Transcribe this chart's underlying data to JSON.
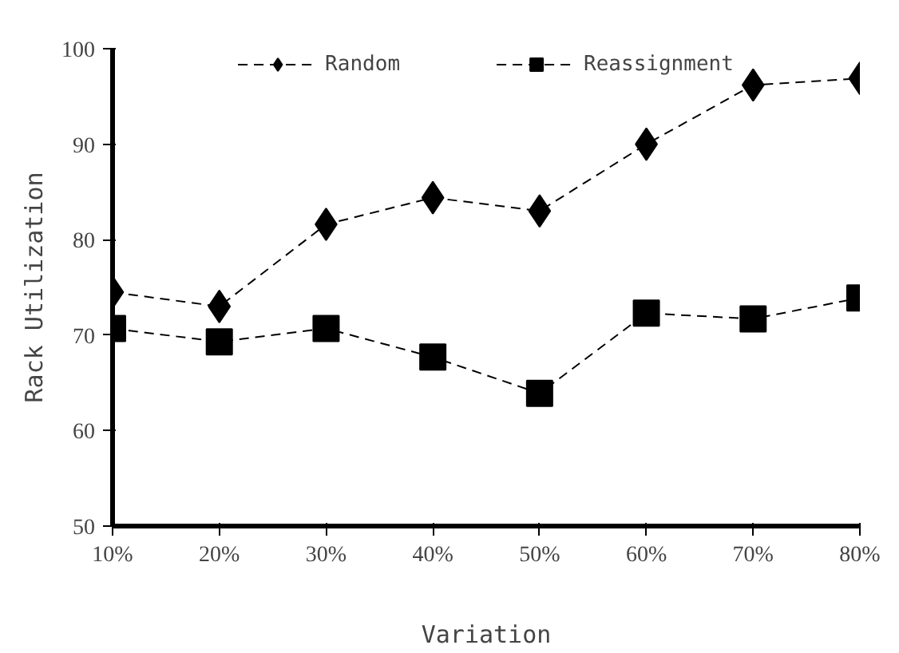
{
  "chart_data": {
    "type": "line",
    "xlabel": "Variation",
    "ylabel": "Rack Utilization",
    "categories": [
      "10%",
      "20%",
      "30%",
      "40%",
      "50%",
      "60%",
      "70%",
      "80%"
    ],
    "series": [
      {
        "name": "Random",
        "color": "#000000",
        "marker": "diamond",
        "values": [
          74.5,
          73,
          81.6,
          84.4,
          83,
          90,
          96.2,
          96.9
        ]
      },
      {
        "name": "Reassignment",
        "color": "#000000",
        "marker": "square",
        "values": [
          70.7,
          69.3,
          70.7,
          67.7,
          63.9,
          72.3,
          71.7,
          73.9
        ]
      }
    ],
    "ylim": [
      50,
      100
    ],
    "yticks": [
      50,
      60,
      70,
      80,
      90,
      100
    ],
    "grid": false,
    "legend": "top",
    "line_style": "dashed"
  }
}
